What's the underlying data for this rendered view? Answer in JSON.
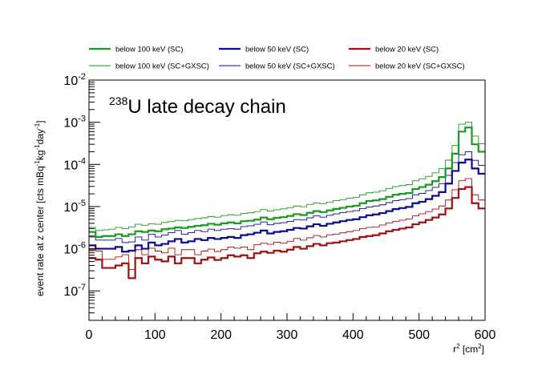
{
  "chart_data": {
    "type": "line",
    "style": "step",
    "annotation": "²³⁸U late decay chain",
    "annotation_parts": {
      "superscript": "238",
      "text": "U late decay chain"
    },
    "xlabel": "r² [cm²]",
    "xlabel_parts": {
      "base": "r",
      "base_sup": "2",
      "unit_open": " [cm",
      "unit_sup": "2",
      "unit_close": "]"
    },
    "ylabel": "event rate at z center [cts mBq⁻¹ kg⁻¹ day⁻¹]",
    "ylabel_parts": {
      "prefix": "event rate at z center [cts mBq",
      "sup1": "-1",
      "mid1": "kg",
      "sup2": "-1",
      "mid2": "day",
      "sup3": "-1",
      "suffix": "]"
    },
    "x_range": [
      0,
      600
    ],
    "y_range": [
      2e-08,
      0.01
    ],
    "y_scale": "log",
    "grid": false,
    "legend_position": "top",
    "x_ticks": [
      0,
      100,
      200,
      300,
      400,
      500,
      600
    ],
    "x_tick_labels": [
      "0",
      "100",
      "200",
      "300",
      "400",
      "500",
      "600"
    ],
    "y_ticks": [
      1e-07,
      1e-06,
      1e-05,
      0.0001,
      0.001,
      0.01
    ],
    "y_tick_labels": [
      {
        "base": "10",
        "exp": "-7"
      },
      {
        "base": "10",
        "exp": "-6"
      },
      {
        "base": "10",
        "exp": "-5"
      },
      {
        "base": "10",
        "exp": "-4"
      },
      {
        "base": "10",
        "exp": "-3"
      },
      {
        "base": "10",
        "exp": "-2"
      }
    ],
    "bin_width": 10,
    "series": [
      {
        "name": "below 100 keV (SC)",
        "color": "#1a9a1a",
        "width": "thick",
        "values": [
          2.5e-06,
          1.9e-06,
          2e-06,
          2e-06,
          2.2e-06,
          2e-06,
          2.2e-06,
          2.6e-06,
          2.5e-06,
          2.7e-06,
          2.6e-06,
          2.9e-06,
          3e-06,
          3.2e-06,
          3.1e-06,
          3.3e-06,
          3.5e-06,
          3.6e-06,
          3.9e-06,
          3.7e-06,
          4e-06,
          4.2e-06,
          4e-06,
          4.5e-06,
          4.6e-06,
          4.9e-06,
          5.5e-06,
          5e-06,
          5.4e-06,
          5.6e-06,
          6e-06,
          6.6e-06,
          6.3e-06,
          7.1e-06,
          7.8e-06,
          7.4e-06,
          8.1e-06,
          8.8e-06,
          9.3e-06,
          1e-05,
          1.05e-05,
          1.2e-05,
          1.35e-05,
          1.4e-05,
          1.5e-05,
          1.7e-05,
          1.9e-05,
          2e-05,
          2.1e-05,
          2.6e-05,
          2.9e-05,
          3.3e-05,
          4e-05,
          5e-05,
          8e-05,
          0.00018,
          0.0006,
          0.00075,
          0.0003,
          0.0002
        ]
      },
      {
        "name": "below 50 keV (SC)",
        "color": "#0a0a96",
        "width": "thick",
        "values": [
          1.2e-06,
          1e-06,
          1e-06,
          1e-06,
          1.1e-06,
          8.5e-07,
          9e-07,
          1.2e-06,
          1e-06,
          1.4e-06,
          1.2e-06,
          1.3e-06,
          1.5e-06,
          1.7e-06,
          1.4e-06,
          1.5e-06,
          1.7e-06,
          1.6e-06,
          1.8e-06,
          1.7e-06,
          1.8e-06,
          1.9e-06,
          1.8e-06,
          2.1e-06,
          2.2e-06,
          2.4e-06,
          2.7e-06,
          2.3e-06,
          2.5e-06,
          2.6e-06,
          2.8e-06,
          3.1e-06,
          3e-06,
          3.4e-06,
          3.8e-06,
          3.5e-06,
          3.9e-06,
          4.2e-06,
          4.5e-06,
          4.8e-06,
          5e-06,
          5.6e-06,
          6.2e-06,
          6.5e-06,
          7e-06,
          7.8e-06,
          8.7e-06,
          9.2e-06,
          9.8e-06,
          1.2e-05,
          1.3e-05,
          1.5e-05,
          1.8e-05,
          2.2e-05,
          3.5e-05,
          7e-05,
          0.00011,
          0.00013,
          8e-05,
          6e-05
        ]
      },
      {
        "name": "below 20 keV (SC)",
        "color": "#a01010",
        "width": "thick",
        "values": [
          6e-07,
          5.5e-07,
          3.5e-07,
          3.5e-07,
          4e-07,
          4.5e-07,
          2e-07,
          6e-07,
          4.5e-07,
          6.5e-07,
          5.5e-07,
          5e-07,
          6.5e-07,
          4.5e-07,
          6e-07,
          6e-07,
          4.5e-07,
          5.5e-07,
          6.2e-07,
          5.4e-07,
          6e-07,
          7e-07,
          6.5e-07,
          7e-07,
          6e-07,
          7.8e-07,
          8.5e-07,
          8e-07,
          9e-07,
          8.5e-07,
          9.5e-07,
          1.1e-06,
          1e-06,
          1.15e-06,
          1.3e-06,
          1.2e-06,
          1.35e-06,
          1.4e-06,
          1.5e-06,
          1.6e-06,
          1.7e-06,
          1.9e-06,
          2e-06,
          2.1e-06,
          2.3e-06,
          2.6e-06,
          2.8e-06,
          3e-06,
          3.2e-06,
          3.8e-06,
          4.2e-06,
          4.8e-06,
          5.5e-06,
          6.5e-06,
          9e-06,
          1.6e-05,
          2.6e-05,
          2.9e-05,
          1.2e-05,
          9e-06
        ]
      },
      {
        "name": "below 100 keV (SC+GXSC)",
        "color": "#1a9a1a",
        "width": "thin",
        "values": [
          3.2e-06,
          2.7e-06,
          2.8e-06,
          2.9e-06,
          3.2e-06,
          3e-06,
          3.3e-06,
          3.8e-06,
          3.6e-06,
          3.9e-06,
          3.8e-06,
          4.2e-06,
          4.4e-06,
          4.7e-06,
          4.6e-06,
          4.9e-06,
          5.2e-06,
          5.4e-06,
          5.8e-06,
          5.6e-06,
          6.1e-06,
          6.4e-06,
          6.2e-06,
          6.9e-06,
          7.1e-06,
          7.6e-06,
          8.5e-06,
          7.8e-06,
          8.4e-06,
          8.8e-06,
          9.4e-06,
          1.03e-05,
          9.9e-06,
          1.12e-05,
          1.22e-05,
          1.17e-05,
          1.28e-05,
          1.38e-05,
          1.46e-05,
          1.58e-05,
          1.66e-05,
          1.9e-05,
          2.12e-05,
          2.2e-05,
          2.37e-05,
          2.67e-05,
          2.98e-05,
          3.14e-05,
          3.3e-05,
          4.08e-05,
          4.55e-05,
          5.2e-05,
          6.3e-05,
          7.9e-05,
          0.000126,
          0.00028,
          0.0009,
          0.001,
          0.00047,
          0.00031
        ]
      },
      {
        "name": "below 50 keV (SC+GXSC)",
        "color": "#0a0a96",
        "width": "thin",
        "values": [
          1.9e-06,
          1.6e-06,
          1.6e-06,
          1.6e-06,
          1.75e-06,
          1.4e-06,
          1.45e-06,
          1.9e-06,
          1.6e-06,
          2.2e-06,
          1.9e-06,
          2.1e-06,
          2.4e-06,
          2.7e-06,
          2.2e-06,
          2.4e-06,
          2.7e-06,
          2.55e-06,
          2.9e-06,
          2.7e-06,
          2.9e-06,
          3e-06,
          2.9e-06,
          3.35e-06,
          3.5e-06,
          3.8e-06,
          4.3e-06,
          3.7e-06,
          4e-06,
          4.15e-06,
          4.45e-06,
          4.9e-06,
          4.8e-06,
          5.4e-06,
          6e-06,
          5.6e-06,
          6.2e-06,
          6.7e-06,
          7.2e-06,
          7.6e-06,
          8e-06,
          8.9e-06,
          9.8e-06,
          1.03e-05,
          1.1e-05,
          1.24e-05,
          1.38e-05,
          1.46e-05,
          1.55e-05,
          1.9e-05,
          2.06e-05,
          2.4e-05,
          2.85e-05,
          3.5e-05,
          5.5e-05,
          0.00011,
          0.00017,
          0.0002,
          0.000125,
          9.5e-05
        ]
      },
      {
        "name": "below 20 keV (SC+GXSC)",
        "color": "#a01010",
        "width": "thin",
        "values": [
          9.5e-07,
          8.8e-07,
          5.6e-07,
          5.6e-07,
          6.4e-07,
          7.2e-07,
          3.2e-07,
          9.5e-07,
          7.2e-07,
          1.03e-06,
          8.8e-07,
          8e-07,
          1.03e-06,
          7.2e-07,
          9.5e-07,
          9.5e-07,
          7.2e-07,
          8.8e-07,
          9.8e-07,
          8.6e-07,
          9.5e-07,
          1.1e-06,
          1.03e-06,
          1.1e-06,
          9.5e-07,
          1.24e-06,
          1.35e-06,
          1.27e-06,
          1.43e-06,
          1.35e-06,
          1.5e-06,
          1.75e-06,
          1.6e-06,
          1.82e-06,
          2.06e-06,
          1.9e-06,
          2.14e-06,
          2.22e-06,
          2.38e-06,
          2.54e-06,
          2.7e-06,
          3e-06,
          3.2e-06,
          3.3e-06,
          3.65e-06,
          4.1e-06,
          4.45e-06,
          4.75e-06,
          5.1e-06,
          6e-06,
          6.7e-06,
          7.6e-06,
          8.7e-06,
          1.03e-05,
          1.43e-05,
          2.5e-05,
          4.1e-05,
          4.6e-05,
          1.9e-05,
          1.43e-05
        ]
      }
    ]
  }
}
